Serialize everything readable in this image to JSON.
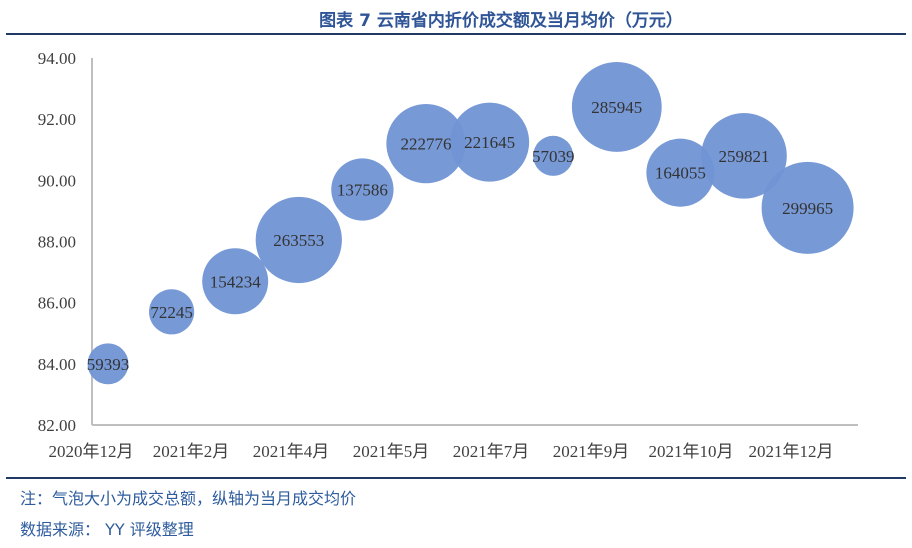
{
  "title": "图表 7  云南省内折价成交额及当月均价（万元）",
  "footnotes": {
    "note": "注：气泡大小为成交总额，纵轴为当月成交均价",
    "source": "数据来源： YY 评级整理"
  },
  "chart_data": {
    "type": "bubble",
    "title": "图表 7  云南省内折价成交额及当月均价（万元）",
    "ylim": [
      82,
      94
    ],
    "y_ticks": [
      "82.00",
      "84.00",
      "86.00",
      "88.00",
      "90.00",
      "92.00",
      "94.00"
    ],
    "x_tick_labels": [
      "2020年12月",
      "2021年2月",
      "2021年4月",
      "2021年5月",
      "2021年7月",
      "2021年9月",
      "2021年10月",
      "2021年12月"
    ],
    "grid": false,
    "bubble_color": "#7094d4",
    "points": [
      {
        "y": 84.0,
        "size": 59393,
        "label": "59393"
      },
      {
        "y": 85.7,
        "size": 72245,
        "label": "72245"
      },
      {
        "y": 86.7,
        "size": 154234,
        "label": "154234"
      },
      {
        "y": 88.05,
        "size": 263553,
        "label": "263553"
      },
      {
        "y": 89.7,
        "size": 137586,
        "label": "137586"
      },
      {
        "y": 91.2,
        "size": 222776,
        "label": "222776"
      },
      {
        "y": 91.25,
        "size": 221645,
        "label": "221645"
      },
      {
        "y": 90.8,
        "size": 57039,
        "label": "57039"
      },
      {
        "y": 92.4,
        "size": 285945,
        "label": "285945"
      },
      {
        "y": 90.25,
        "size": 164055,
        "label": "164055"
      },
      {
        "y": 90.8,
        "size": 259821,
        "label": "259821"
      },
      {
        "y": 89.1,
        "size": 299965,
        "label": "299965"
      }
    ]
  }
}
